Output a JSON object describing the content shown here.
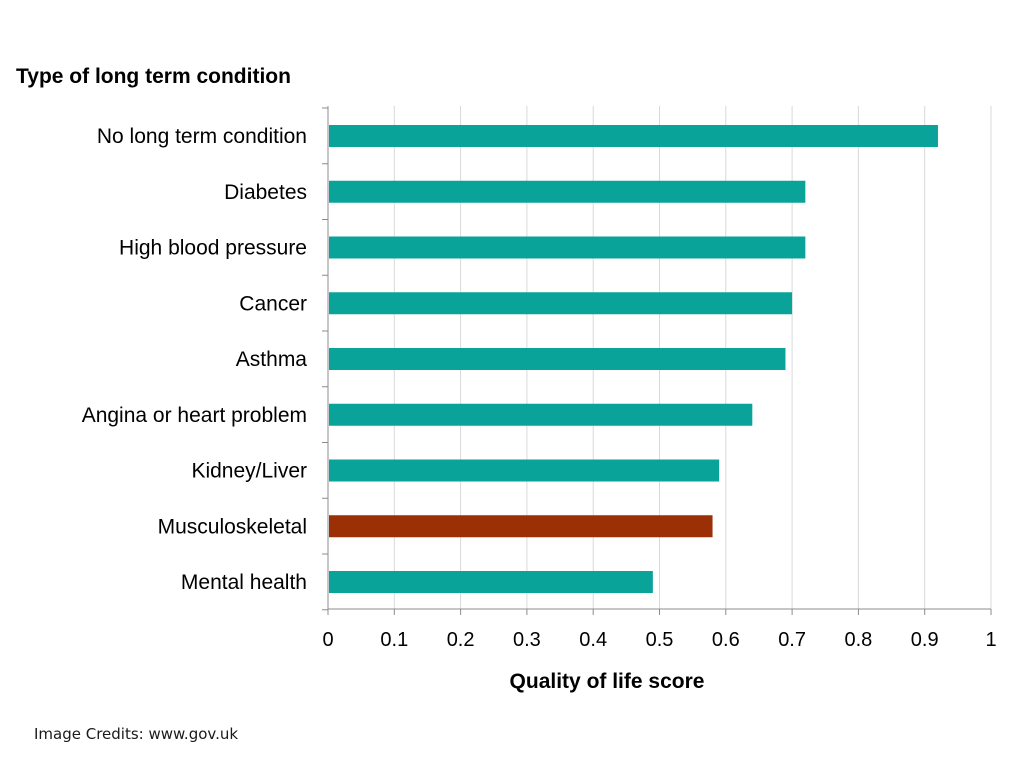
{
  "chart_data": {
    "type": "bar",
    "orientation": "horizontal",
    "title": "Type of long term condition",
    "xlabel": "Quality of life score",
    "ylabel": "",
    "categories": [
      "No long term condition",
      "Diabetes",
      "High blood pressure",
      "Cancer",
      "Asthma",
      "Angina or heart problem",
      "Kidney/Liver",
      "Musculoskeletal",
      "Mental health"
    ],
    "values": [
      0.92,
      0.72,
      0.72,
      0.7,
      0.69,
      0.64,
      0.59,
      0.58,
      0.49
    ],
    "xlim": [
      0,
      1
    ],
    "x_ticks": [
      "0",
      "0.1",
      "0.2",
      "0.3",
      "0.4",
      "0.5",
      "0.6",
      "0.7",
      "0.8",
      "0.9",
      "1"
    ],
    "grid": "vertical",
    "legend": "none",
    "highlight_category": "Musculoskeletal",
    "colors": {
      "bar": "#0aa39a",
      "highlight": "#9b2f06",
      "grid": "#d9d9d9",
      "axis": "#8c8c8c",
      "text": "#000000"
    }
  },
  "credits": "Image Credits: www.gov.uk"
}
